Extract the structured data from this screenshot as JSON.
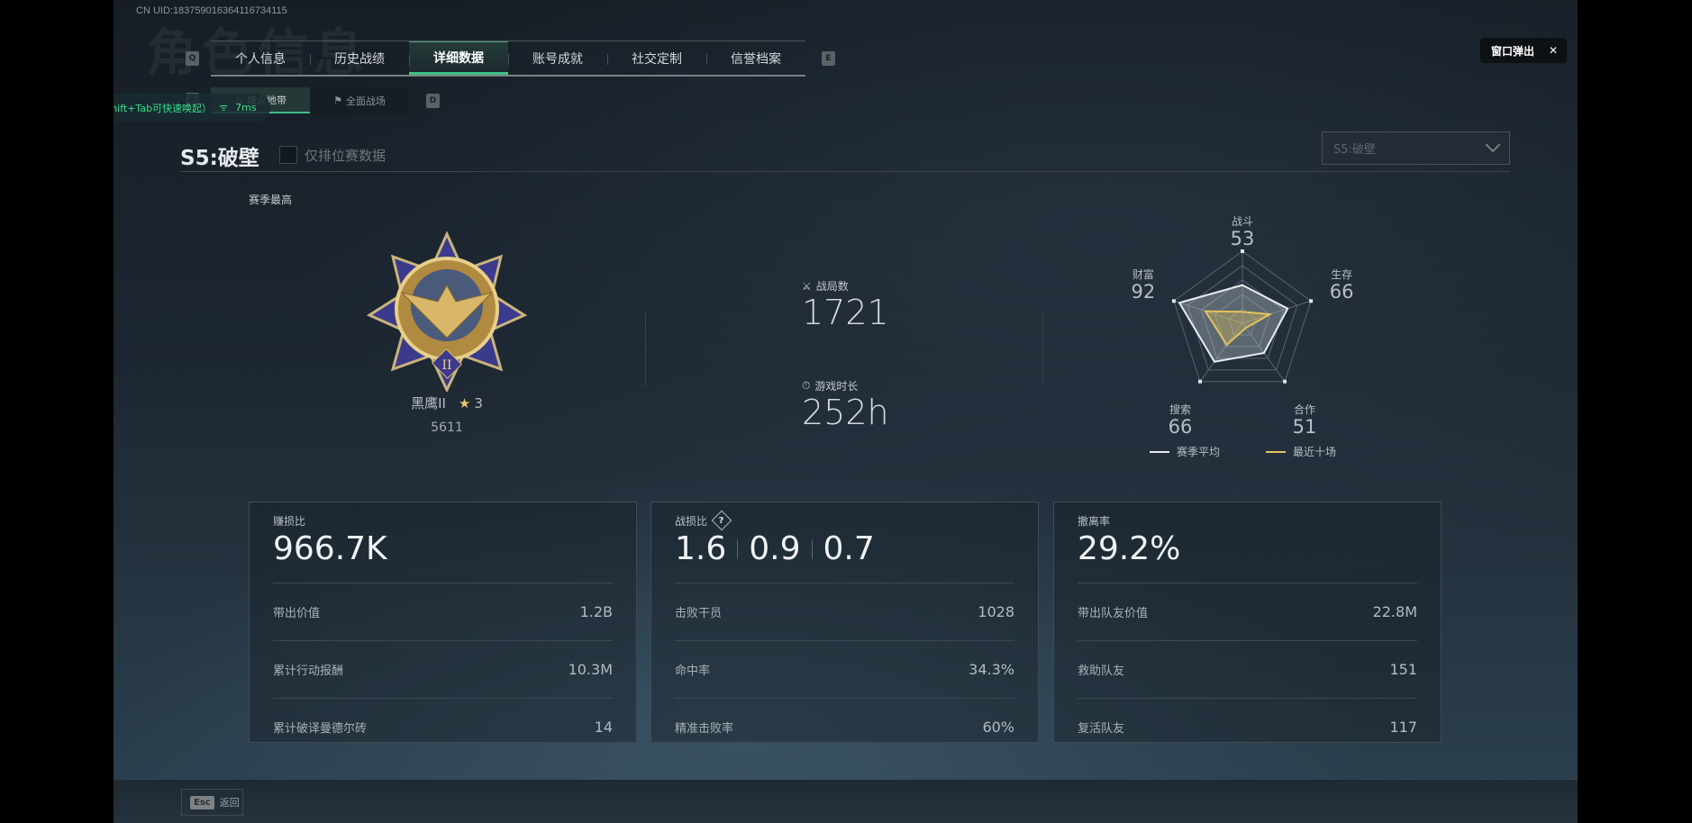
{
  "uid": "CN UID:183759016364116734115",
  "watermark_title": "角色信息",
  "tabs": {
    "prev_key": "Q",
    "next_key": "E",
    "items": [
      {
        "label": "个人信息"
      },
      {
        "label": "历史战绩"
      },
      {
        "label": "详细数据",
        "active": true
      },
      {
        "label": "账号成就"
      },
      {
        "label": "社交定制"
      },
      {
        "label": "信誉档案"
      }
    ]
  },
  "subtabs": {
    "prev_key": "A",
    "next_key": "D",
    "items": [
      {
        "label": "烽火地带",
        "active": true
      },
      {
        "label": "全面战场"
      }
    ]
  },
  "toast": {
    "text": "菜单栏在这里（Shift+Tab可快速唤起）",
    "ping": "7ms",
    "accent": "#35e08a"
  },
  "season": {
    "title": "S5:破壁",
    "ranked_only_label": "仅排位赛数据",
    "ranked_only_checked": false,
    "dropdown_value": "S5:破壁"
  },
  "best": {
    "label": "赛季最高",
    "rank_name": "黑鹰II",
    "stars": "3",
    "score": "5611"
  },
  "matches": {
    "label": "战局数",
    "value": "1721"
  },
  "playtime": {
    "label": "游戏时长",
    "value": "252h"
  },
  "chart_data": {
    "type": "radar",
    "axes": [
      "战斗",
      "生存",
      "合作",
      "搜索",
      "财富"
    ],
    "labels_values": [
      "53",
      "66",
      "51",
      "66",
      "92"
    ],
    "range": [
      0,
      100
    ],
    "series": [
      {
        "name": "赛季平均",
        "values": [
          53,
          66,
          51,
          66,
          92
        ],
        "color": "#e8ecef"
      },
      {
        "name": "最近十场",
        "values": [
          16,
          40,
          8,
          37,
          54
        ],
        "color": "#e3c35a"
      }
    ],
    "legend": "bottom"
  },
  "cards": [
    {
      "label": "赚损比",
      "value_parts": [
        "966.7K"
      ],
      "rows": [
        {
          "label": "带出价值",
          "value": "1.2B"
        },
        {
          "label": "累计行动报酬",
          "value": "10.3M"
        },
        {
          "label": "累计破译曼德尔砖",
          "value": "14"
        }
      ]
    },
    {
      "label": "战损比",
      "help": "?",
      "value_parts": [
        "1.6",
        "0.9",
        "0.7"
      ],
      "rows": [
        {
          "label": "击败干员",
          "value": "1028"
        },
        {
          "label": "命中率",
          "value": "34.3%"
        },
        {
          "label": "精准击败率",
          "value": "60%"
        }
      ]
    },
    {
      "label": "撤离率",
      "value_parts": [
        "29.2%"
      ],
      "rows": [
        {
          "label": "带出队友价值",
          "value": "22.8M"
        },
        {
          "label": "救助队友",
          "value": "151"
        },
        {
          "label": "复活队友",
          "value": "117"
        }
      ]
    }
  ],
  "footer": {
    "esc_key": "Esc",
    "back_label": "返回"
  },
  "popout": {
    "label": "窗口弹出"
  }
}
